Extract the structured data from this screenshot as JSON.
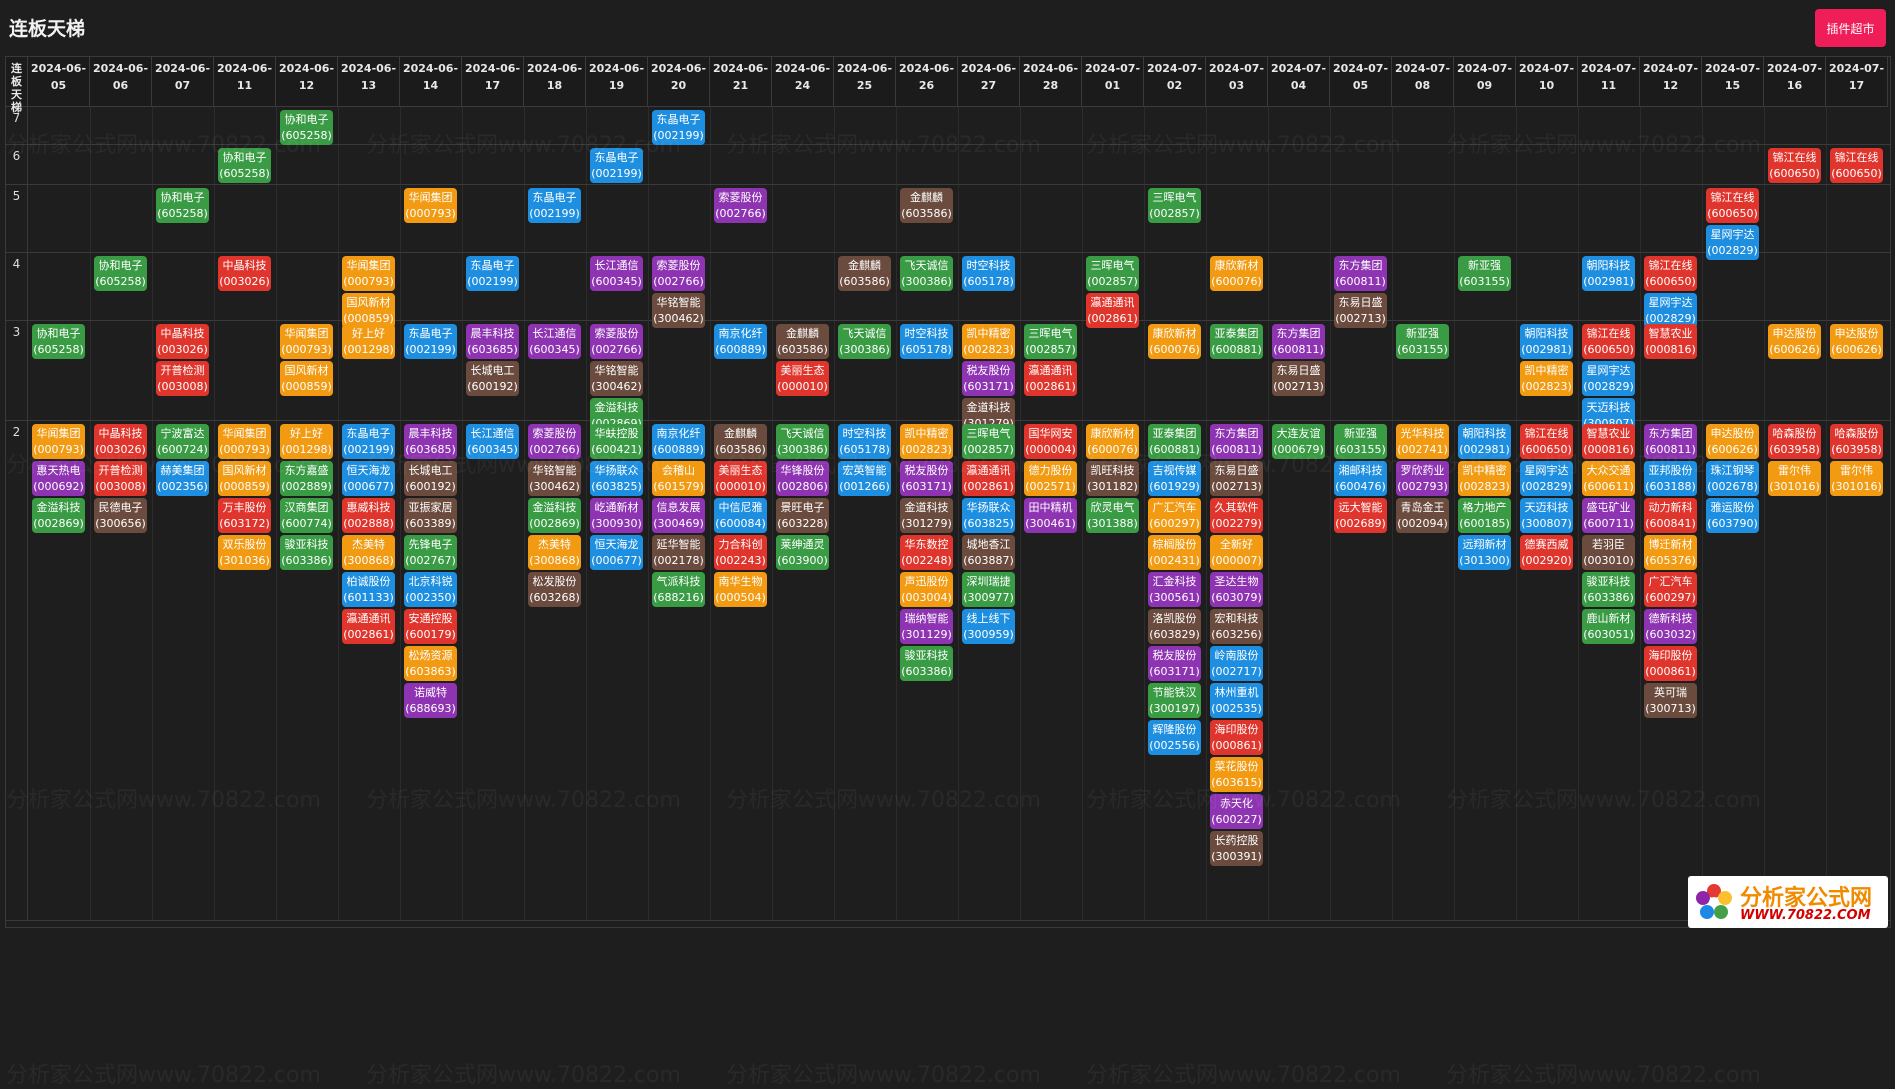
{
  "header": {
    "title": "连板天梯",
    "plugin_button": "插件超市"
  },
  "corner_label": "连板天梯",
  "columns": [
    "2024-06-05",
    "2024-06-06",
    "2024-06-07",
    "2024-06-11",
    "2024-06-12",
    "2024-06-13",
    "2024-06-14",
    "2024-06-17",
    "2024-06-18",
    "2024-06-19",
    "2024-06-20",
    "2024-06-21",
    "2024-06-24",
    "2024-06-25",
    "2024-06-26",
    "2024-06-27",
    "2024-06-28",
    "2024-07-01",
    "2024-07-02",
    "2024-07-03",
    "2024-07-04",
    "2024-07-05",
    "2024-07-08",
    "2024-07-09",
    "2024-07-10",
    "2024-07-11",
    "2024-07-12",
    "2024-07-15",
    "2024-07-16",
    "2024-07-17"
  ],
  "levels": [
    "7",
    "6",
    "5",
    "4",
    "3",
    "2"
  ],
  "colors": {
    "green": "#3a9b45",
    "red": "#e0352c",
    "orange": "#f19a12",
    "blue": "#1e8fe0",
    "purple": "#8e34b2",
    "brown": "#6b4b3e",
    "teal": "#17a594"
  },
  "watermark": "分析家公式网www.70822.com",
  "logo": {
    "name": "分析家公式网",
    "url": "WWW.70822.COM"
  },
  "ladder": {
    "7": [
      [],
      [],
      [],
      [],
      [
        [
          "协和电子",
          "605258",
          "green"
        ]
      ],
      [],
      [],
      [],
      [],
      [],
      [
        [
          "东晶电子",
          "002199",
          "blue"
        ]
      ],
      [],
      [],
      [],
      [],
      [],
      [],
      [],
      [],
      [],
      [],
      [],
      [],
      [],
      [],
      [],
      [],
      [],
      [],
      []
    ],
    "6": [
      [],
      [],
      [],
      [
        [
          "协和电子",
          "605258",
          "green"
        ]
      ],
      [],
      [],
      [],
      [],
      [],
      [
        [
          "东晶电子",
          "002199",
          "blue"
        ]
      ],
      [],
      [],
      [],
      [],
      [],
      [],
      [],
      [],
      [],
      [],
      [],
      [],
      [],
      [],
      [],
      [],
      [],
      [],
      [
        [
          "锦江在线",
          "600650",
          "red"
        ]
      ],
      [
        [
          "锦江在线",
          "600650",
          "red"
        ]
      ]
    ],
    "5": [
      [],
      [],
      [
        [
          "协和电子",
          "605258",
          "green"
        ]
      ],
      [],
      [],
      [],
      [
        [
          "华闻集团",
          "000793",
          "orange"
        ]
      ],
      [],
      [
        [
          "东晶电子",
          "002199",
          "blue"
        ]
      ],
      [],
      [],
      [
        [
          "索菱股份",
          "002766",
          "purple"
        ]
      ],
      [],
      [],
      [
        [
          "金麒麟",
          "603586",
          "brown"
        ]
      ],
      [],
      [],
      [],
      [
        [
          "三晖电气",
          "002857",
          "green"
        ]
      ],
      [],
      [],
      [],
      [],
      [],
      [],
      [],
      [],
      [
        [
          "锦江在线",
          "600650",
          "red"
        ],
        [
          "星网宇达",
          "002829",
          "blue"
        ]
      ],
      [],
      []
    ],
    "4": [
      [],
      [
        [
          "协和电子",
          "605258",
          "green"
        ]
      ],
      [],
      [
        [
          "中晶科技",
          "003026",
          "red"
        ]
      ],
      [],
      [
        [
          "华闻集团",
          "000793",
          "orange"
        ],
        [
          "国风新材",
          "000859",
          "orange"
        ]
      ],
      [],
      [
        [
          "东晶电子",
          "002199",
          "blue"
        ]
      ],
      [],
      [
        [
          "长江通信",
          "600345",
          "purple"
        ]
      ],
      [
        [
          "索菱股份",
          "002766",
          "purple"
        ],
        [
          "华铭智能",
          "300462",
          "brown"
        ]
      ],
      [],
      [],
      [
        [
          "金麒麟",
          "603586",
          "brown"
        ]
      ],
      [
        [
          "飞天诚信",
          "300386",
          "green"
        ]
      ],
      [
        [
          "时空科技",
          "605178",
          "blue"
        ]
      ],
      [],
      [
        [
          "三晖电气",
          "002857",
          "green"
        ],
        [
          "瀛通通讯",
          "002861",
          "red"
        ]
      ],
      [],
      [
        [
          "康欣新材",
          "600076",
          "orange"
        ]
      ],
      [],
      [
        [
          "东方集团",
          "600811",
          "purple"
        ],
        [
          "东易日盛",
          "002713",
          "brown"
        ]
      ],
      [],
      [
        [
          "新亚强",
          "603155",
          "green"
        ]
      ],
      [],
      [
        [
          "朝阳科技",
          "002981",
          "blue"
        ]
      ],
      [
        [
          "锦江在线",
          "600650",
          "red"
        ],
        [
          "星网宇达",
          "002829",
          "blue"
        ]
      ],
      [],
      [],
      []
    ],
    "3": [
      [
        [
          "协和电子",
          "605258",
          "green"
        ]
      ],
      [],
      [
        [
          "中晶科技",
          "003026",
          "red"
        ],
        [
          "开普检测",
          "003008",
          "red"
        ]
      ],
      [],
      [
        [
          "华闻集团",
          "000793",
          "orange"
        ],
        [
          "国风新材",
          "000859",
          "orange"
        ]
      ],
      [
        [
          "好上好",
          "001298",
          "orange"
        ]
      ],
      [
        [
          "东晶电子",
          "002199",
          "blue"
        ]
      ],
      [
        [
          "晨丰科技",
          "603685",
          "purple"
        ],
        [
          "长城电工",
          "600192",
          "brown"
        ]
      ],
      [
        [
          "长江通信",
          "600345",
          "purple"
        ]
      ],
      [
        [
          "索菱股份",
          "002766",
          "purple"
        ],
        [
          "华铭智能",
          "300462",
          "brown"
        ],
        [
          "金溢科技",
          "002869",
          "green"
        ]
      ],
      [],
      [
        [
          "南京化纤",
          "600889",
          "blue"
        ]
      ],
      [
        [
          "金麒麟",
          "603586",
          "brown"
        ],
        [
          "美丽生态",
          "000010",
          "red"
        ]
      ],
      [
        [
          "飞天诚信",
          "300386",
          "green"
        ]
      ],
      [
        [
          "时空科技",
          "605178",
          "blue"
        ]
      ],
      [
        [
          "凯中精密",
          "002823",
          "orange"
        ],
        [
          "税友股份",
          "603171",
          "purple"
        ],
        [
          "金道科技",
          "301279",
          "brown"
        ]
      ],
      [
        [
          "三晖电气",
          "002857",
          "green"
        ],
        [
          "瀛通通讯",
          "002861",
          "red"
        ]
      ],
      [],
      [
        [
          "康欣新材",
          "600076",
          "orange"
        ]
      ],
      [
        [
          "亚泰集团",
          "600881",
          "green"
        ]
      ],
      [
        [
          "东方集团",
          "600811",
          "purple"
        ],
        [
          "东易日盛",
          "002713",
          "brown"
        ]
      ],
      [],
      [
        [
          "新亚强",
          "603155",
          "green"
        ]
      ],
      [],
      [
        [
          "朝阳科技",
          "002981",
          "blue"
        ],
        [
          "凯中精密",
          "002823",
          "orange"
        ]
      ],
      [
        [
          "锦江在线",
          "600650",
          "red"
        ],
        [
          "星网宇达",
          "002829",
          "blue"
        ],
        [
          "天迈科技",
          "300807",
          "blue"
        ]
      ],
      [
        [
          "智慧农业",
          "000816",
          "red"
        ]
      ],
      [],
      [
        [
          "申达股份",
          "600626",
          "orange"
        ]
      ],
      [
        [
          "申达股份",
          "600626",
          "orange"
        ]
      ]
    ],
    "2": [
      [
        [
          "华闻集团",
          "000793",
          "orange"
        ],
        [
          "惠天热电",
          "000692",
          "purple"
        ],
        [
          "金溢科技",
          "002869",
          "green"
        ]
      ],
      [
        [
          "中晶科技",
          "003026",
          "red"
        ],
        [
          "开普检测",
          "003008",
          "red"
        ],
        [
          "民德电子",
          "300656",
          "brown"
        ]
      ],
      [
        [
          "宁波富达",
          "600724",
          "green"
        ],
        [
          "赫美集团",
          "002356",
          "blue"
        ]
      ],
      [
        [
          "华闻集团",
          "000793",
          "orange"
        ],
        [
          "国风新材",
          "000859",
          "orange"
        ],
        [
          "万丰股份",
          "603172",
          "red"
        ],
        [
          "双乐股份",
          "301036",
          "orange"
        ]
      ],
      [
        [
          "好上好",
          "001298",
          "orange"
        ],
        [
          "东方嘉盛",
          "002889",
          "green"
        ],
        [
          "汉商集团",
          "600774",
          "green"
        ],
        [
          "骏亚科技",
          "603386",
          "green"
        ]
      ],
      [
        [
          "东晶电子",
          "002199",
          "blue"
        ],
        [
          "恒天海龙",
          "000677",
          "blue"
        ],
        [
          "惠威科技",
          "002888",
          "red"
        ],
        [
          "杰美特",
          "300868",
          "orange"
        ],
        [
          "柏诚股份",
          "601133",
          "blue"
        ],
        [
          "瀛通通讯",
          "002861",
          "red"
        ]
      ],
      [
        [
          "晨丰科技",
          "603685",
          "purple"
        ],
        [
          "长城电工",
          "600192",
          "brown"
        ],
        [
          "亚振家居",
          "603389",
          "brown"
        ],
        [
          "先锋电子",
          "002767",
          "green"
        ],
        [
          "北京科锐",
          "002350",
          "blue"
        ],
        [
          "安通控股",
          "600179",
          "red"
        ],
        [
          "松炀资源",
          "603863",
          "orange"
        ],
        [
          "诺威特",
          "688693",
          "purple"
        ]
      ],
      [
        [
          "长江通信",
          "600345",
          "blue"
        ]
      ],
      [
        [
          "索菱股份",
          "002766",
          "purple"
        ],
        [
          "华铭智能",
          "300462",
          "brown"
        ],
        [
          "金溢科技",
          "002869",
          "green"
        ],
        [
          "杰美特",
          "300868",
          "orange"
        ],
        [
          "松发股份",
          "603268",
          "brown"
        ]
      ],
      [
        [
          "华蚨控股",
          "600421",
          "green"
        ],
        [
          "华扬联众",
          "603825",
          "blue"
        ],
        [
          "屹通新材",
          "300930",
          "purple"
        ],
        [
          "恒天海龙",
          "000677",
          "blue"
        ]
      ],
      [
        [
          "南京化纤",
          "600889",
          "blue"
        ],
        [
          "会稽山",
          "601579",
          "orange"
        ],
        [
          "信息发展",
          "300469",
          "purple"
        ],
        [
          "延华智能",
          "002178",
          "brown"
        ],
        [
          "气派科技",
          "688216",
          "green"
        ]
      ],
      [
        [
          "金麒麟",
          "603586",
          "brown"
        ],
        [
          "美丽生态",
          "000010",
          "red"
        ],
        [
          "中信尼雅",
          "600084",
          "blue"
        ],
        [
          "力合科创",
          "002243",
          "red"
        ],
        [
          "南华生物",
          "000504",
          "orange"
        ]
      ],
      [
        [
          "飞天诚信",
          "300386",
          "green"
        ],
        [
          "华锋股份",
          "002806",
          "purple"
        ],
        [
          "景旺电子",
          "603228",
          "brown"
        ],
        [
          "莱绅通灵",
          "603900",
          "green"
        ]
      ],
      [
        [
          "时空科技",
          "605178",
          "blue"
        ],
        [
          "宏英智能",
          "001266",
          "blue"
        ]
      ],
      [
        [
          "凯中精密",
          "002823",
          "orange"
        ],
        [
          "税友股份",
          "603171",
          "purple"
        ],
        [
          "金道科技",
          "301279",
          "brown"
        ],
        [
          "华东数控",
          "002248",
          "red"
        ],
        [
          "声迅股份",
          "003004",
          "orange"
        ],
        [
          "瑞纳智能",
          "301129",
          "purple"
        ],
        [
          "骏亚科技",
          "603386",
          "green"
        ]
      ],
      [
        [
          "三晖电气",
          "002857",
          "green"
        ],
        [
          "瀛通通讯",
          "002861",
          "red"
        ],
        [
          "华扬联众",
          "603825",
          "blue"
        ],
        [
          "城地香江",
          "603887",
          "brown"
        ],
        [
          "深圳瑞捷",
          "300977",
          "green"
        ],
        [
          "线上线下",
          "300959",
          "blue"
        ]
      ],
      [
        [
          "国华网安",
          "000004",
          "red"
        ],
        [
          "德力股份",
          "002571",
          "orange"
        ],
        [
          "田中精机",
          "300461",
          "purple"
        ]
      ],
      [
        [
          "康欣新材",
          "600076",
          "orange"
        ],
        [
          "凯旺科技",
          "301182",
          "brown"
        ],
        [
          "欣灵电气",
          "301388",
          "green"
        ]
      ],
      [
        [
          "亚泰集团",
          "600881",
          "green"
        ],
        [
          "吉视传媒",
          "601929",
          "blue"
        ],
        [
          "广汇汽车",
          "600297",
          "orange"
        ],
        [
          "棕榈股份",
          "002431",
          "orange"
        ],
        [
          "汇金科技",
          "300561",
          "purple"
        ],
        [
          "洛凯股份",
          "603829",
          "brown"
        ],
        [
          "税友股份",
          "603171",
          "purple"
        ],
        [
          "节能铁汉",
          "300197",
          "green"
        ],
        [
          "辉隆股份",
          "002556",
          "blue"
        ]
      ],
      [
        [
          "东方集团",
          "600811",
          "purple"
        ],
        [
          "东易日盛",
          "002713",
          "brown"
        ],
        [
          "久其软件",
          "002279",
          "red"
        ],
        [
          "全新好",
          "000007",
          "orange"
        ],
        [
          "圣达生物",
          "603079",
          "purple"
        ],
        [
          "宏和科技",
          "603256",
          "brown"
        ],
        [
          "岭南股份",
          "002717",
          "blue"
        ],
        [
          "林州重机",
          "002535",
          "blue"
        ],
        [
          "海印股份",
          "000861",
          "red"
        ],
        [
          "菜花股份",
          "603615",
          "orange"
        ],
        [
          "赤天化",
          "600227",
          "purple"
        ],
        [
          "长药控股",
          "300391",
          "brown"
        ]
      ],
      [
        [
          "大连友谊",
          "000679",
          "green"
        ]
      ],
      [
        [
          "新亚强",
          "603155",
          "green"
        ],
        [
          "湘邮科技",
          "600476",
          "blue"
        ],
        [
          "远大智能",
          "002689",
          "red"
        ]
      ],
      [
        [
          "光华科技",
          "002741",
          "orange"
        ],
        [
          "罗欣药业",
          "002793",
          "purple"
        ],
        [
          "青岛金王",
          "002094",
          "brown"
        ]
      ],
      [
        [
          "朝阳科技",
          "002981",
          "blue"
        ],
        [
          "凯中精密",
          "002823",
          "orange"
        ],
        [
          "格力地产",
          "600185",
          "green"
        ],
        [
          "远翔新材",
          "301300",
          "blue"
        ]
      ],
      [
        [
          "锦江在线",
          "600650",
          "red"
        ],
        [
          "星网宇达",
          "002829",
          "blue"
        ],
        [
          "天迈科技",
          "300807",
          "blue"
        ],
        [
          "德赛西威",
          "002920",
          "red"
        ]
      ],
      [
        [
          "智慧农业",
          "000816",
          "red"
        ],
        [
          "大众交通",
          "600611",
          "orange"
        ],
        [
          "盛屯矿业",
          "600711",
          "purple"
        ],
        [
          "若羽臣",
          "003010",
          "brown"
        ],
        [
          "骏亚科技",
          "603386",
          "green"
        ],
        [
          "鹿山新材",
          "603051",
          "green"
        ]
      ],
      [
        [
          "东方集团",
          "600811",
          "purple"
        ],
        [
          "亚邦股份",
          "603188",
          "blue"
        ],
        [
          "动力新科",
          "600841",
          "red"
        ],
        [
          "博迁新材",
          "605376",
          "orange"
        ],
        [
          "广汇汽车",
          "600297",
          "red"
        ],
        [
          "德新科技",
          "603032",
          "purple"
        ],
        [
          "海印股份",
          "000861",
          "red"
        ],
        [
          "英可瑞",
          "300713",
          "brown"
        ]
      ],
      [
        [
          "申达股份",
          "600626",
          "orange"
        ],
        [
          "珠江钢琴",
          "002678",
          "blue"
        ],
        [
          "雅运股份",
          "603790",
          "blue"
        ]
      ],
      [
        [
          "哈森股份",
          "603958",
          "red"
        ],
        [
          "雷尔伟",
          "301016",
          "orange"
        ]
      ],
      [
        [
          "哈森股份",
          "603958",
          "red"
        ],
        [
          "雷尔伟",
          "301016",
          "orange"
        ]
      ]
    ]
  }
}
